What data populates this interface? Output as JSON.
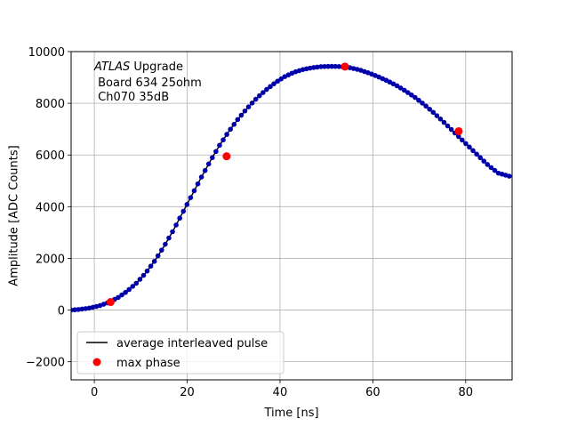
{
  "chart_data": {
    "type": "scatter",
    "xlabel": "Time [ns]",
    "ylabel": "Amplitude [ADC Counts]",
    "xlim": [
      -5,
      90
    ],
    "ylim": [
      -2700,
      10000
    ],
    "xticks": [
      0,
      20,
      40,
      60,
      80
    ],
    "yticks": [
      -2000,
      0,
      2000,
      4000,
      6000,
      8000,
      10000
    ],
    "xtick_labels": [
      "0",
      "20",
      "40",
      "60",
      "80"
    ],
    "ytick_labels": [
      "−2000",
      "0",
      "2000",
      "4000",
      "6000",
      "8000",
      "10000"
    ],
    "grid": true,
    "legend_position": "lower-left",
    "annotation": {
      "italic": "ATLAS",
      "line1_rest": " Upgrade",
      "line2": " Board 634 25ohm",
      "line3": " Ch070 35dB"
    },
    "series": [
      {
        "name": "average interleaved pulse",
        "style": "line",
        "color": "#000000",
        "marker_color": "#0000aa",
        "x": [
          -5,
          -3,
          -1,
          1,
          3,
          5,
          7,
          9,
          11,
          13,
          15,
          17,
          19,
          21,
          23,
          25,
          27,
          29,
          31,
          33,
          35,
          37,
          39,
          41,
          43,
          45,
          47,
          49,
          51,
          53,
          55,
          57,
          59,
          61,
          63,
          65,
          67,
          69,
          71,
          73,
          75,
          77,
          79,
          81,
          83,
          85,
          87,
          90
        ],
        "y": [
          0,
          30,
          80,
          160,
          290,
          470,
          720,
          1030,
          1420,
          1900,
          2460,
          3080,
          3760,
          4440,
          5120,
          5770,
          6380,
          6920,
          7400,
          7820,
          8200,
          8520,
          8800,
          9030,
          9200,
          9310,
          9380,
          9420,
          9430,
          9420,
          9380,
          9300,
          9180,
          9040,
          8880,
          8700,
          8480,
          8240,
          7960,
          7650,
          7320,
          6970,
          6620,
          6270,
          5920,
          5580,
          5300,
          5150
        ]
      },
      {
        "name": "max phase",
        "style": "markers",
        "color": "#ff0000",
        "x": [
          3.5,
          28.5,
          54,
          78.5
        ],
        "y": [
          310,
          5950,
          9420,
          6920
        ]
      }
    ]
  }
}
